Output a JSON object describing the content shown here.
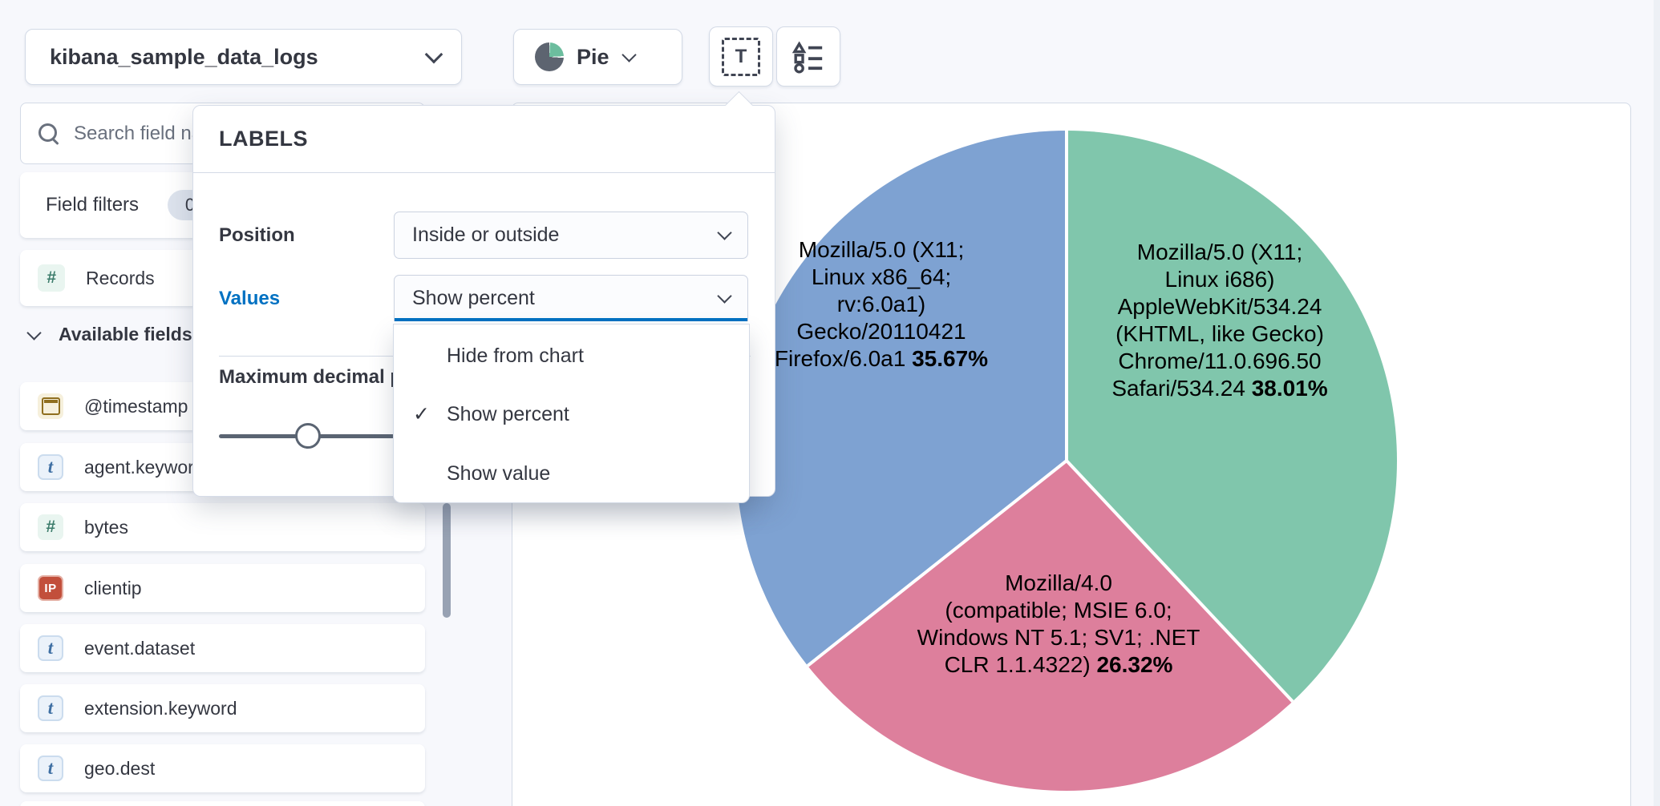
{
  "topbar": {
    "dataset_label": "kibana_sample_data_logs",
    "chart_type_label": "Pie"
  },
  "sidebar": {
    "search_placeholder": "Search field names",
    "field_filters_label": "Field filters",
    "field_filters_badge": "0",
    "records_label": "Records",
    "available_fields_label": "Available fields",
    "fields": [
      {
        "name": "@timestamp",
        "type": "date"
      },
      {
        "name": "agent.keyword",
        "type": "string"
      },
      {
        "name": "bytes",
        "type": "number"
      },
      {
        "name": "clientip",
        "type": "ip"
      },
      {
        "name": "event.dataset",
        "type": "string"
      },
      {
        "name": "extension.keyword",
        "type": "string"
      },
      {
        "name": "geo.dest",
        "type": "string"
      }
    ]
  },
  "popover": {
    "title": "LABELS",
    "position_label": "Position",
    "position_value": "Inside or outside",
    "values_label": "Values",
    "values_value": "Show percent",
    "max_decimal_label": "Maximum decimal places",
    "options": [
      {
        "label": "Hide from chart",
        "selected": false
      },
      {
        "label": "Show percent",
        "selected": true
      },
      {
        "label": "Show value",
        "selected": false
      }
    ]
  },
  "colors": {
    "accent_blue": "#0071C2",
    "slice_green": "#80C6AC",
    "slice_pink": "#DD7F9C",
    "slice_blue": "#7EA2D2"
  },
  "chart_data": {
    "type": "pie",
    "value_format": "percent",
    "label_position": "inside_or_outside",
    "slices": [
      {
        "label": "Mozilla/5.0 (X11; Linux i686) AppleWebKit/534.24 (KHTML, like Gecko) Chrome/11.0.696.50 Safari/534.24",
        "percent": 38.01,
        "percent_text": "38.01%",
        "color": "#80C6AC",
        "label_lines": [
          "Mozilla/5.0 (X11;",
          "Linux i686)",
          "AppleWebKit/534.24",
          "(KHTML, like Gecko)",
          "Chrome/11.0.696.50",
          "Safari/534.24"
        ]
      },
      {
        "label": "Mozilla/4.0 (compatible; MSIE 6.0; Windows NT 5.1; SV1; .NET CLR 1.1.4322)",
        "percent": 26.32,
        "percent_text": "26.32%",
        "color": "#DD7F9C",
        "label_lines": [
          "Mozilla/4.0",
          "(compatible; MSIE 6.0;",
          "Windows NT 5.1; SV1; .NET",
          "CLR 1.1.4322)"
        ]
      },
      {
        "label": "Mozilla/5.0 (X11; Linux x86_64; rv:6.0a1) Gecko/20110421 Firefox/6.0a1",
        "percent": 35.67,
        "percent_text": "35.67%",
        "color": "#7EA2D2",
        "label_lines": [
          "Mozilla/5.0 (X11;",
          "Linux x86_64;",
          "rv:6.0a1)",
          "Gecko/20110421",
          "Firefox/6.0a1"
        ]
      }
    ]
  }
}
